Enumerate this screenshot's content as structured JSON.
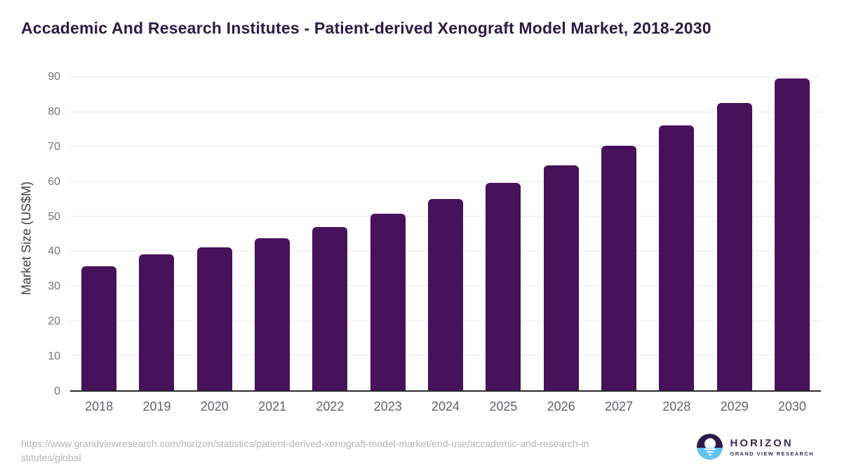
{
  "chart_data": {
    "type": "bar",
    "title": "Accademic And Research Institutes - Patient-derived Xenograft Model Market, 2018-2030",
    "categories": [
      "2018",
      "2019",
      "2020",
      "2021",
      "2022",
      "2023",
      "2024",
      "2025",
      "2026",
      "2027",
      "2028",
      "2029",
      "2030"
    ],
    "values": [
      35.7,
      39.0,
      41.1,
      43.7,
      46.9,
      50.8,
      55.0,
      59.6,
      64.6,
      70.2,
      76.1,
      82.5,
      89.7
    ],
    "xlabel": "",
    "ylabel": "Market Size (US$M)",
    "ylim": [
      0,
      90
    ],
    "yticks": [
      0,
      10,
      20,
      30,
      40,
      50,
      60,
      70,
      80,
      90
    ],
    "grid": "horizontal-only",
    "legend": "none",
    "bar_color": "#48115c"
  },
  "footer": {
    "source_url_lines": [
      "https://www.grandviewresearch.com/horizon/statistics/patient-derived-xenograft-model-market/end-use/accademic-and-research-in",
      "stitutes/global"
    ],
    "logo": {
      "name": "HORIZON",
      "subtitle": "GRAND VIEW RESEARCH"
    }
  },
  "colors": {
    "title_text": "#2e1a47",
    "bar": "#48115c",
    "axis_line": "#2b2b2b",
    "gridline": "#e9e9e9",
    "tick_text": "#757575",
    "x_tick_text": "#5f6368",
    "url_text": "#b4b4b4",
    "logo_purple": "#2d1b47",
    "logo_text_purple": "#3b2a60",
    "logo_blue": "#62c3ef"
  }
}
